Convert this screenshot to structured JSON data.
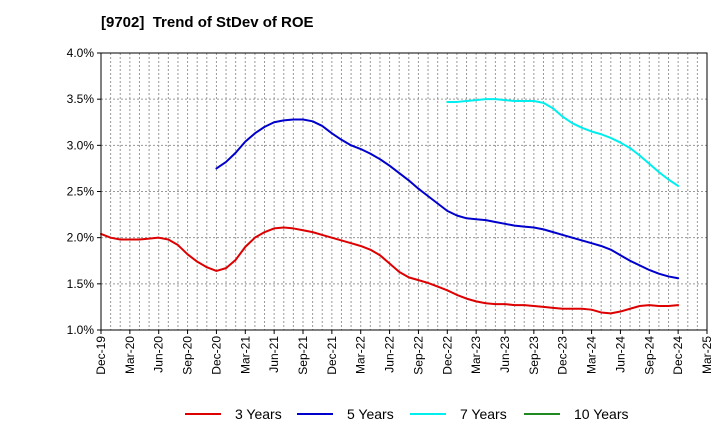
{
  "chart_data": {
    "type": "line",
    "title": "[9702]  Trend of StDev of ROE",
    "xlabel": "",
    "ylabel": "",
    "ylim": [
      1.0,
      4.0
    ],
    "y_ticks": [
      "1.0%",
      "1.5%",
      "2.0%",
      "2.5%",
      "3.0%",
      "3.5%",
      "4.0%"
    ],
    "x_tick_labels": [
      "Dec-19",
      "Mar-20",
      "Jun-20",
      "Sep-20",
      "Dec-20",
      "Mar-21",
      "Jun-21",
      "Sep-21",
      "Dec-21",
      "Mar-22",
      "Jun-22",
      "Sep-22",
      "Dec-22",
      "Mar-23",
      "Jun-23",
      "Sep-23",
      "Dec-23",
      "Mar-24",
      "Jun-24",
      "Sep-24",
      "Dec-24",
      "Mar-25"
    ],
    "grid": true,
    "legend_position": "bottom",
    "series": [
      {
        "name": "3 Years",
        "color": "#dd0000",
        "x": [
          "Dec-19",
          "Jan-20",
          "Feb-20",
          "Mar-20",
          "Apr-20",
          "May-20",
          "Jun-20",
          "Jul-20",
          "Aug-20",
          "Sep-20",
          "Oct-20",
          "Nov-20",
          "Dec-20",
          "Jan-21",
          "Feb-21",
          "Mar-21",
          "Apr-21",
          "May-21",
          "Jun-21",
          "Jul-21",
          "Aug-21",
          "Sep-21",
          "Oct-21",
          "Nov-21",
          "Dec-21",
          "Jan-22",
          "Feb-22",
          "Mar-22",
          "Apr-22",
          "May-22",
          "Jun-22",
          "Jul-22",
          "Aug-22",
          "Sep-22",
          "Oct-22",
          "Nov-22",
          "Dec-22",
          "Jan-23",
          "Feb-23",
          "Mar-23",
          "Apr-23",
          "May-23",
          "Jun-23",
          "Jul-23",
          "Aug-23",
          "Sep-23",
          "Oct-23",
          "Nov-23",
          "Dec-23",
          "Jan-24",
          "Feb-24",
          "Mar-24",
          "Apr-24",
          "May-24",
          "Jun-24",
          "Jul-24",
          "Aug-24",
          "Sep-24",
          "Oct-24",
          "Nov-24",
          "Dec-24"
        ],
        "values": [
          2.04,
          2.0,
          1.98,
          1.98,
          1.98,
          1.99,
          2.0,
          1.98,
          1.92,
          1.82,
          1.74,
          1.68,
          1.64,
          1.67,
          1.76,
          1.9,
          2.0,
          2.06,
          2.1,
          2.11,
          2.1,
          2.08,
          2.06,
          2.03,
          2.0,
          1.97,
          1.94,
          1.91,
          1.87,
          1.81,
          1.72,
          1.63,
          1.57,
          1.54,
          1.51,
          1.47,
          1.43,
          1.38,
          1.34,
          1.31,
          1.29,
          1.28,
          1.28,
          1.27,
          1.27,
          1.26,
          1.25,
          1.24,
          1.23,
          1.23,
          1.23,
          1.22,
          1.19,
          1.18,
          1.2,
          1.23,
          1.26,
          1.27,
          1.26,
          1.26,
          1.27
        ]
      },
      {
        "name": "5 Years",
        "color": "#0000cc",
        "x": [
          "Dec-20",
          "Jan-21",
          "Feb-21",
          "Mar-21",
          "Apr-21",
          "May-21",
          "Jun-21",
          "Jul-21",
          "Aug-21",
          "Sep-21",
          "Oct-21",
          "Nov-21",
          "Dec-21",
          "Jan-22",
          "Feb-22",
          "Mar-22",
          "Apr-22",
          "May-22",
          "Jun-22",
          "Jul-22",
          "Aug-22",
          "Sep-22",
          "Oct-22",
          "Nov-22",
          "Dec-22",
          "Jan-23",
          "Feb-23",
          "Mar-23",
          "Apr-23",
          "May-23",
          "Jun-23",
          "Jul-23",
          "Aug-23",
          "Sep-23",
          "Oct-23",
          "Nov-23",
          "Dec-23",
          "Jan-24",
          "Feb-24",
          "Mar-24",
          "Apr-24",
          "May-24",
          "Jun-24",
          "Jul-24",
          "Aug-24",
          "Sep-24",
          "Oct-24",
          "Nov-24",
          "Dec-24"
        ],
        "values": [
          2.75,
          2.82,
          2.92,
          3.04,
          3.13,
          3.2,
          3.25,
          3.27,
          3.28,
          3.28,
          3.26,
          3.21,
          3.13,
          3.06,
          3.0,
          2.96,
          2.91,
          2.85,
          2.78,
          2.7,
          2.62,
          2.53,
          2.45,
          2.37,
          2.29,
          2.24,
          2.21,
          2.2,
          2.19,
          2.17,
          2.15,
          2.13,
          2.12,
          2.11,
          2.09,
          2.06,
          2.03,
          2.0,
          1.97,
          1.94,
          1.91,
          1.87,
          1.81,
          1.75,
          1.7,
          1.65,
          1.61,
          1.58,
          1.56
        ]
      },
      {
        "name": "7 Years",
        "color": "#00eeee",
        "x": [
          "Dec-22",
          "Jan-23",
          "Feb-23",
          "Mar-23",
          "Apr-23",
          "May-23",
          "Jun-23",
          "Jul-23",
          "Aug-23",
          "Sep-23",
          "Oct-23",
          "Nov-23",
          "Dec-23",
          "Jan-24",
          "Feb-24",
          "Mar-24",
          "Apr-24",
          "May-24",
          "Jun-24",
          "Jul-24",
          "Aug-24",
          "Sep-24",
          "Oct-24",
          "Nov-24",
          "Dec-24"
        ],
        "values": [
          3.47,
          3.47,
          3.48,
          3.49,
          3.5,
          3.5,
          3.49,
          3.48,
          3.48,
          3.48,
          3.46,
          3.4,
          3.31,
          3.24,
          3.19,
          3.15,
          3.12,
          3.08,
          3.03,
          2.97,
          2.89,
          2.8,
          2.71,
          2.63,
          2.56
        ]
      },
      {
        "name": "10 Years",
        "color": "#228822",
        "x": [],
        "values": []
      }
    ]
  }
}
